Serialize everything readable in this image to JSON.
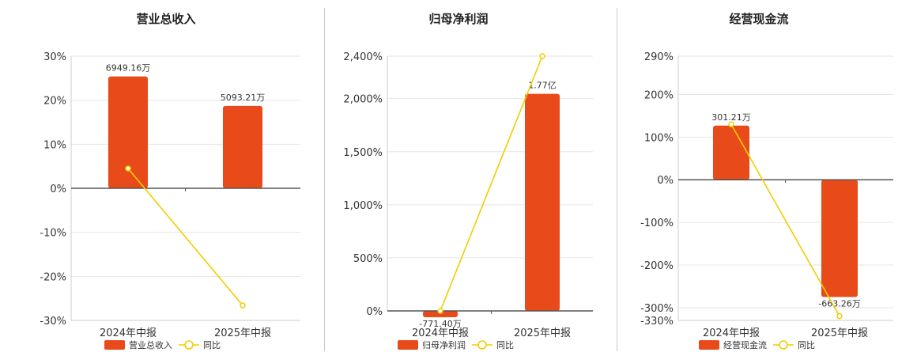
{
  "colors": {
    "bar": "#e84a1a",
    "line": "#f2cd00",
    "grid": "#e6e6e6",
    "axis": "#555555"
  },
  "chart_data": [
    {
      "type": "bar",
      "title": "营业总收入",
      "categories": [
        "2024年中报",
        "2025年中报"
      ],
      "bar_series": {
        "name": "营业总收入",
        "values": [
          25.4,
          18.7
        ],
        "labels": [
          "6949.16万",
          "5093.21万"
        ]
      },
      "line_series": {
        "name": "同比",
        "values": [
          4.5,
          -26.6
        ]
      },
      "yticks": [
        "30%",
        "20%",
        "10%",
        "0%",
        "-10%",
        "-20%",
        "-30%"
      ],
      "ytick_values": [
        30,
        20,
        10,
        0,
        -10,
        -20,
        -30
      ],
      "ylim": [
        -30,
        30
      ],
      "grid": true,
      "legend": "bottom"
    },
    {
      "type": "bar",
      "title": "归母净利润",
      "categories": [
        "2024年中报",
        "2025年中报"
      ],
      "bar_series": {
        "name": "归母净利润",
        "values": [
          -60,
          2045
        ],
        "labels": [
          "-771.40万",
          "1.77亿"
        ]
      },
      "line_series": {
        "name": "同比",
        "values": [
          0,
          2400
        ]
      },
      "yticks": [
        "2,400%",
        "2,000%",
        "1,500%",
        "1,000%",
        "500%",
        "0%"
      ],
      "ytick_values": [
        2400,
        2000,
        1500,
        1000,
        500,
        0
      ],
      "ylim": [
        0,
        2400
      ],
      "grid": true,
      "legend": "bottom"
    },
    {
      "type": "bar",
      "title": "经营现金流",
      "categories": [
        "2024年中报",
        "2025年中报"
      ],
      "bar_series": {
        "name": "经营现金流",
        "values": [
          127,
          -275
        ],
        "labels": [
          "301.21万",
          "-663.26万"
        ]
      },
      "line_series": {
        "name": "同比",
        "values": [
          130,
          -320
        ]
      },
      "yticks": [
        "290%",
        "200%",
        "100%",
        "0%",
        "-100%",
        "-200%",
        "-300%",
        "-330%"
      ],
      "ytick_values": [
        290,
        200,
        100,
        0,
        -100,
        -200,
        -300,
        -330
      ],
      "ylim": [
        -330,
        290
      ],
      "grid": true,
      "legend": "bottom"
    }
  ]
}
